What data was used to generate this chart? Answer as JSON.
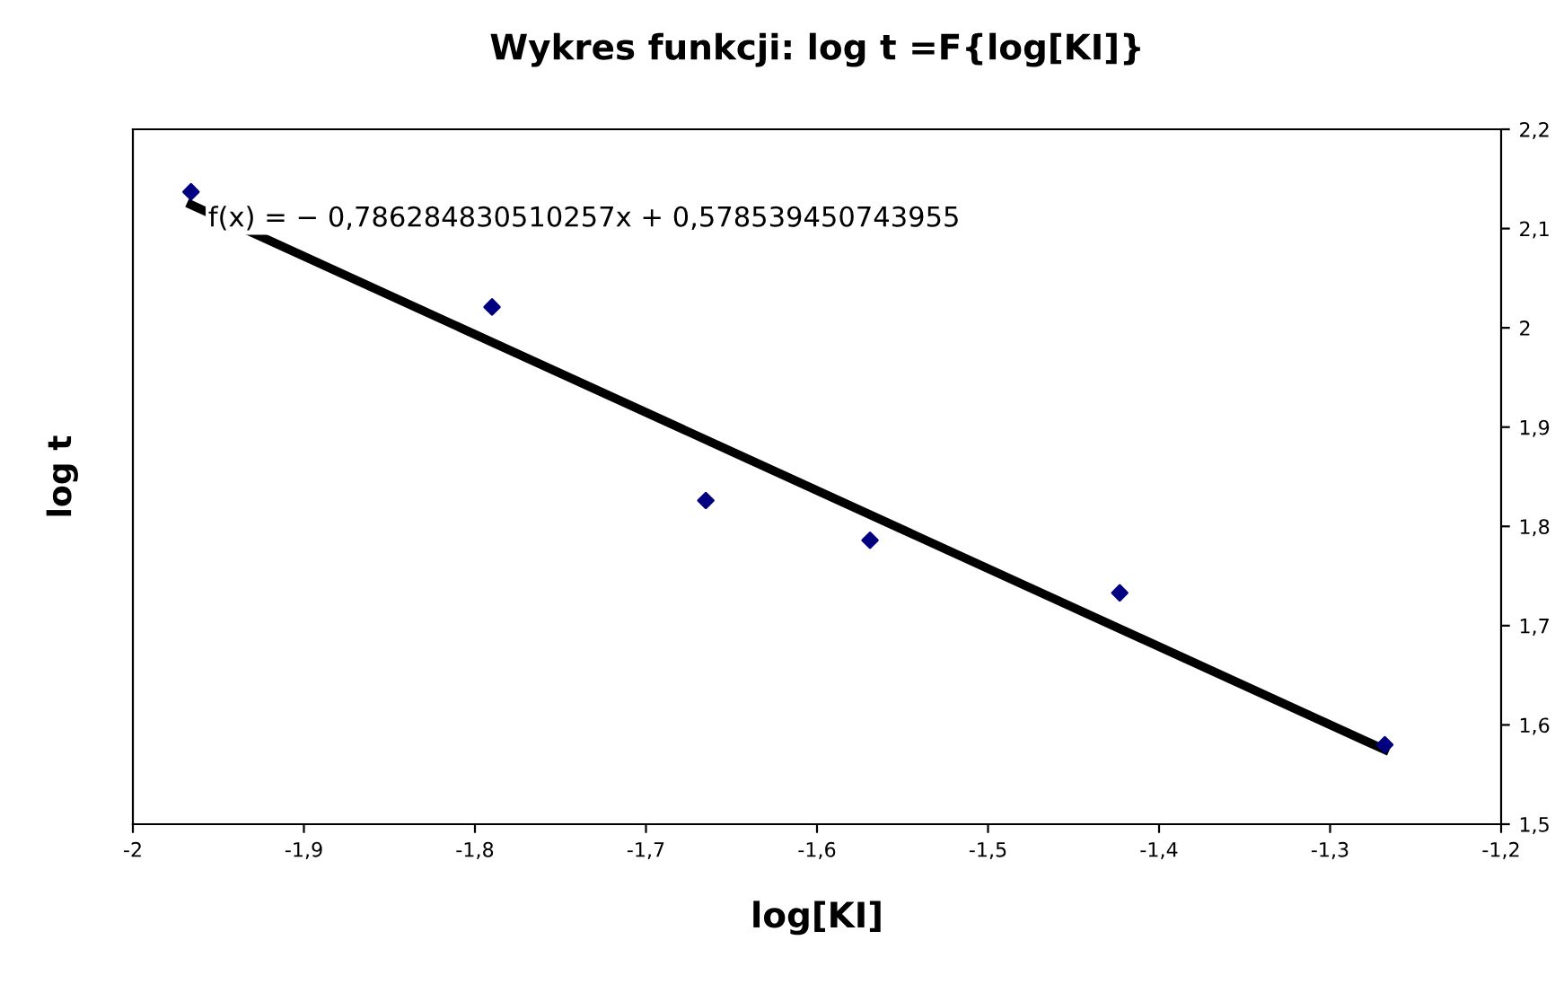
{
  "chart_data": {
    "type": "scatter",
    "title": "Wykres funkcji: log t =F{log[KI]}",
    "xlabel": "log[KI]",
    "ylabel": "log t",
    "annotations": [
      "f(x) = − 0,786284830510257x + 0,578539450743955"
    ],
    "series": [
      {
        "color": "#000080",
        "marker": "diamond",
        "x": [
          -1.966,
          -1.79,
          -1.665,
          -1.569,
          -1.423,
          -1.268
        ],
        "values": [
          2.137,
          2.021,
          1.826,
          1.786,
          1.733,
          1.58
        ]
      },
      {
        "type": "line",
        "color": "#000000",
        "marker": "none",
        "x": [
          -1.966,
          -1.268
        ],
        "values": [
          2.124,
          1.575
        ]
      }
    ],
    "xlim": [
      -2,
      -1.2
    ],
    "ylim": [
      1.5,
      2.2
    ],
    "xticks": [
      -2,
      {
        "value": -1.9,
        "label": "-1,9"
      },
      {
        "value": -1.8,
        "label": "-1,8"
      },
      {
        "value": -1.7,
        "label": "-1,7"
      },
      {
        "value": -1.6,
        "label": "-1,6"
      },
      {
        "value": -1.5,
        "label": "-1,5"
      },
      {
        "value": -1.4,
        "label": "-1,4"
      },
      {
        "value": -1.3,
        "label": "-1,3"
      },
      {
        "value": -1.2,
        "label": "-1,2"
      }
    ],
    "yticks": [
      {
        "value": 1.5,
        "label": "1,5"
      },
      {
        "value": 1.6,
        "label": "1,6"
      },
      {
        "value": 1.7,
        "label": "1,7"
      },
      {
        "value": 1.8,
        "label": "1,8"
      },
      {
        "value": 1.9,
        "label": "1,9"
      },
      2,
      {
        "value": 2.1,
        "label": "2,1"
      },
      {
        "value": 2.2,
        "label": "2,2"
      }
    ],
    "grid": false,
    "legend": false
  }
}
